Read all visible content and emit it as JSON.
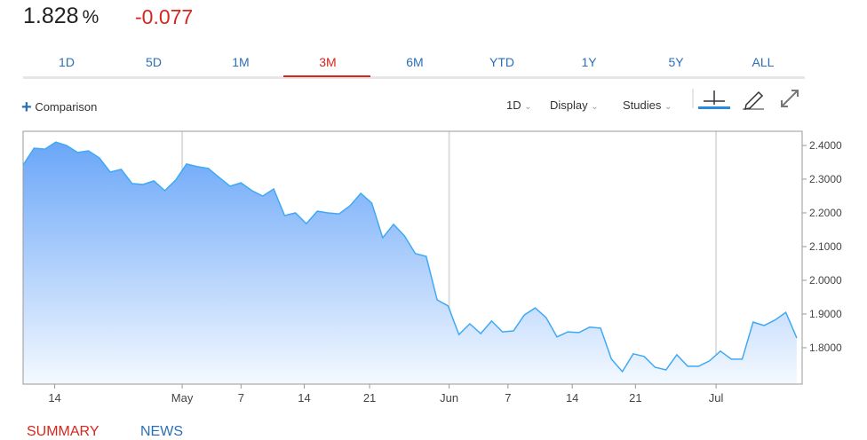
{
  "quote": {
    "price": "1.828",
    "unit": "%",
    "change": "-0.077"
  },
  "tabs": [
    "1D",
    "5D",
    "1M",
    "3M",
    "6M",
    "YTD",
    "1Y",
    "5Y",
    "ALL"
  ],
  "toolbar": {
    "comparison": "Comparison",
    "interval": "1D",
    "display": "Display",
    "studies": "Studies"
  },
  "chart_data": {
    "type": "area",
    "x": [
      0,
      1,
      2,
      3,
      4,
      5,
      6,
      7,
      8,
      9,
      10,
      11,
      12,
      13,
      14,
      15,
      16,
      17,
      18,
      19,
      20,
      21,
      22,
      23,
      24,
      25,
      26,
      27,
      28,
      29,
      30,
      31,
      32,
      33,
      34,
      35,
      36,
      37,
      38,
      39,
      40,
      41,
      42,
      43,
      44,
      45,
      46,
      47,
      48,
      49,
      50,
      51,
      52,
      53,
      54,
      55,
      56,
      57,
      58,
      59,
      60,
      61,
      62,
      63,
      64,
      65,
      66,
      67,
      68,
      69,
      70,
      71
    ],
    "series": [
      {
        "color": "#3fa9f5",
        "values": [
          2.342,
          2.392,
          2.389,
          2.41,
          2.4,
          2.379,
          2.384,
          2.363,
          2.321,
          2.329,
          2.287,
          2.284,
          2.295,
          2.266,
          2.297,
          2.345,
          2.337,
          2.332,
          2.305,
          2.279,
          2.289,
          2.266,
          2.25,
          2.271,
          2.192,
          2.2,
          2.168,
          2.205,
          2.2,
          2.197,
          2.221,
          2.258,
          2.229,
          2.126,
          2.166,
          2.132,
          2.079,
          2.071,
          1.942,
          1.924,
          1.839,
          1.871,
          1.842,
          1.879,
          1.847,
          1.85,
          1.897,
          1.918,
          1.889,
          1.832,
          1.847,
          1.845,
          1.861,
          1.858,
          1.766,
          1.729,
          1.782,
          1.774,
          1.742,
          1.734,
          1.779,
          1.745,
          1.745,
          1.761,
          1.79,
          1.766,
          1.766,
          1.876,
          1.866,
          1.882,
          1.905,
          1.829
        ]
      }
    ],
    "xlim": [
      0,
      71.5
    ],
    "xticks": [
      {
        "value": 2.9,
        "label": "14"
      },
      {
        "value": 14.6,
        "label": "May"
      },
      {
        "value": 20.0,
        "label": "7"
      },
      {
        "value": 25.8,
        "label": "14"
      },
      {
        "value": 31.8,
        "label": "21"
      },
      {
        "value": 39.1,
        "label": "Jun"
      },
      {
        "value": 44.5,
        "label": "7"
      },
      {
        "value": 50.4,
        "label": "14"
      },
      {
        "value": 56.2,
        "label": "21"
      },
      {
        "value": 63.6,
        "label": "Jul"
      }
    ],
    "ylim": [
      1.692,
      2.442
    ],
    "yticks": [
      {
        "value": 2.4,
        "label": "2.4000"
      },
      {
        "value": 2.3,
        "label": "2.3000"
      },
      {
        "value": 2.2,
        "label": "2.2000"
      },
      {
        "value": 2.1,
        "label": "2.1000"
      },
      {
        "value": 2.0,
        "label": "2.0000"
      },
      {
        "value": 1.9,
        "label": "1.9000"
      },
      {
        "value": 1.8,
        "label": "1.8000"
      }
    ]
  },
  "bottom_tabs": [
    "SUMMARY",
    "NEWS"
  ]
}
